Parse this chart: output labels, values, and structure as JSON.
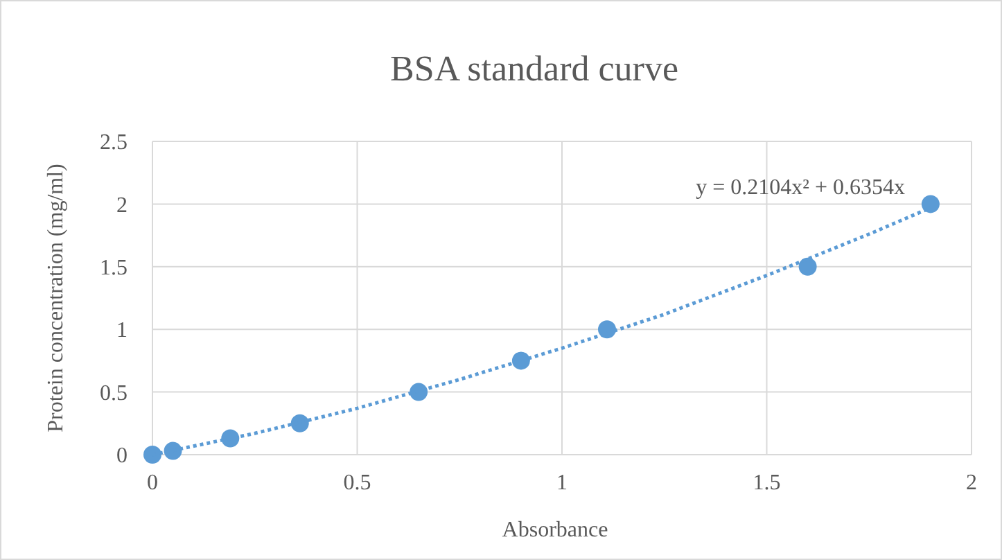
{
  "chart_data": {
    "type": "scatter",
    "title": "BSA standard curve",
    "xlabel": "Absorbance",
    "ylabel": "Protein concentration (mg/ml)",
    "x": [
      0,
      0.05,
      0.19,
      0.36,
      0.65,
      0.9,
      1.11,
      1.6,
      1.9
    ],
    "series": [
      {
        "color": "#5b9bd5",
        "marker": "circle",
        "values": [
          0,
          0.03,
          0.13,
          0.25,
          0.5,
          0.75,
          1,
          1.5,
          2
        ]
      },
      {
        "type": "line",
        "color": "#5b9bd5",
        "line_style": "dotted",
        "marker": "none",
        "x": [
          0,
          0.25,
          0.5,
          0.75,
          1,
          1.25,
          1.5,
          1.75,
          1.9
        ],
        "values": [
          0,
          0.17,
          0.37,
          0.6,
          0.85,
          1.12,
          1.43,
          1.76,
          1.97
        ]
      }
    ],
    "xlim": [
      0,
      2
    ],
    "xticks": [
      0,
      0.5,
      1,
      1.5,
      2
    ],
    "ylim": [
      0,
      2.5
    ],
    "yticks": [
      0,
      0.5,
      1,
      1.5,
      2,
      2.5
    ],
    "grid": true,
    "annotations": [
      "y = 0.2104x² + 0.6354x"
    ]
  }
}
